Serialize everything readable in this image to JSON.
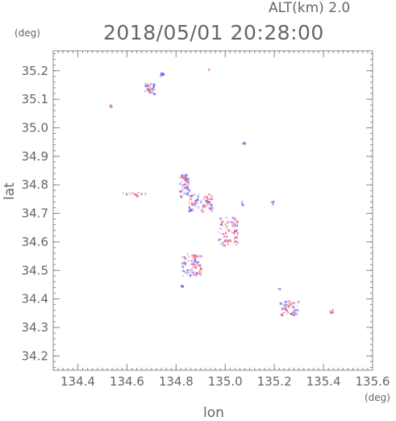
{
  "header": {
    "altitude_label": "ALT(km) 2.0",
    "datetime": "2018/05/01 20:28:00"
  },
  "axes": {
    "x_label": "lon",
    "y_label": "lat",
    "x_unit": "(deg)",
    "y_unit": "(deg)",
    "x_range": [
      134.3,
      135.6
    ],
    "y_range": [
      34.15,
      35.27
    ],
    "x_ticks": [
      "134.4",
      "134.6",
      "134.8",
      "135.0",
      "135.2",
      "135.4",
      "135.6"
    ],
    "y_ticks": [
      "34.2",
      "34.3",
      "34.4",
      "34.5",
      "34.6",
      "34.7",
      "34.8",
      "34.9",
      "35.0",
      "35.1",
      "35.2"
    ]
  },
  "colors": {
    "frame": "#888888",
    "positive": "#ff6666",
    "negative": "#6666ff"
  }
}
